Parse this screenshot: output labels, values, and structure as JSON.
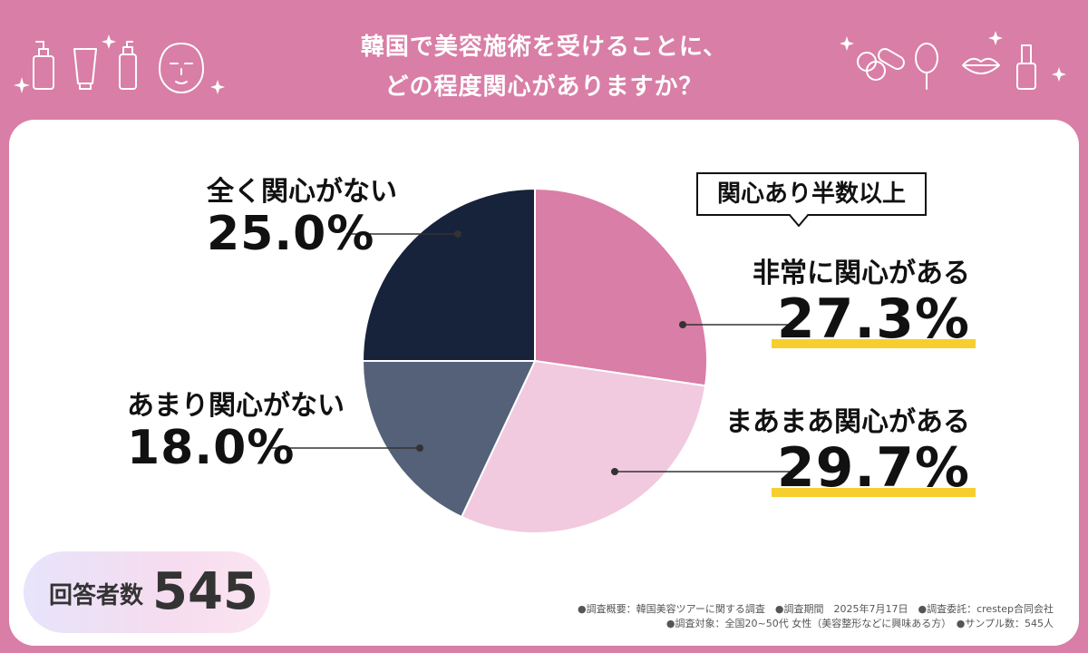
{
  "header": {
    "title_line1": "韓国で美容施術を受けることに、",
    "title_line2": "どの程度関心がありますか？"
  },
  "colors": {
    "background": "#d97ea6",
    "card": "#ffffff",
    "highlight": "#f6cf2e"
  },
  "chart_data": {
    "type": "pie",
    "start": "12 o'clock",
    "direction": "clockwise",
    "slices": [
      {
        "label": "非常に関心がある",
        "value": 27.3,
        "value_label": "27.3%",
        "color": "#d97ea6"
      },
      {
        "label": "まあまあ関心がある",
        "value": 29.7,
        "value_label": "29.7%",
        "color": "#f1cadf"
      },
      {
        "label": "あまり関心がない",
        "value": 18.0,
        "value_label": "18.0%",
        "color": "#546179"
      },
      {
        "label": "全く関心がない",
        "value": 25.0,
        "value_label": "25.0%",
        "color": "#17233b"
      }
    ],
    "callout": "関心あり半数以上",
    "respondents_label": "回答者数",
    "respondents_value": "545"
  },
  "footnote": {
    "line1": "●調査概要：韓国美容ツアーに関する調査　●調査期間　2025年7月17日　●調査委託：crestep合同会社",
    "line2": "●調査対象：全国20~50代 女性（美容整形などに興味ある方）　●サンプル数：545人"
  }
}
